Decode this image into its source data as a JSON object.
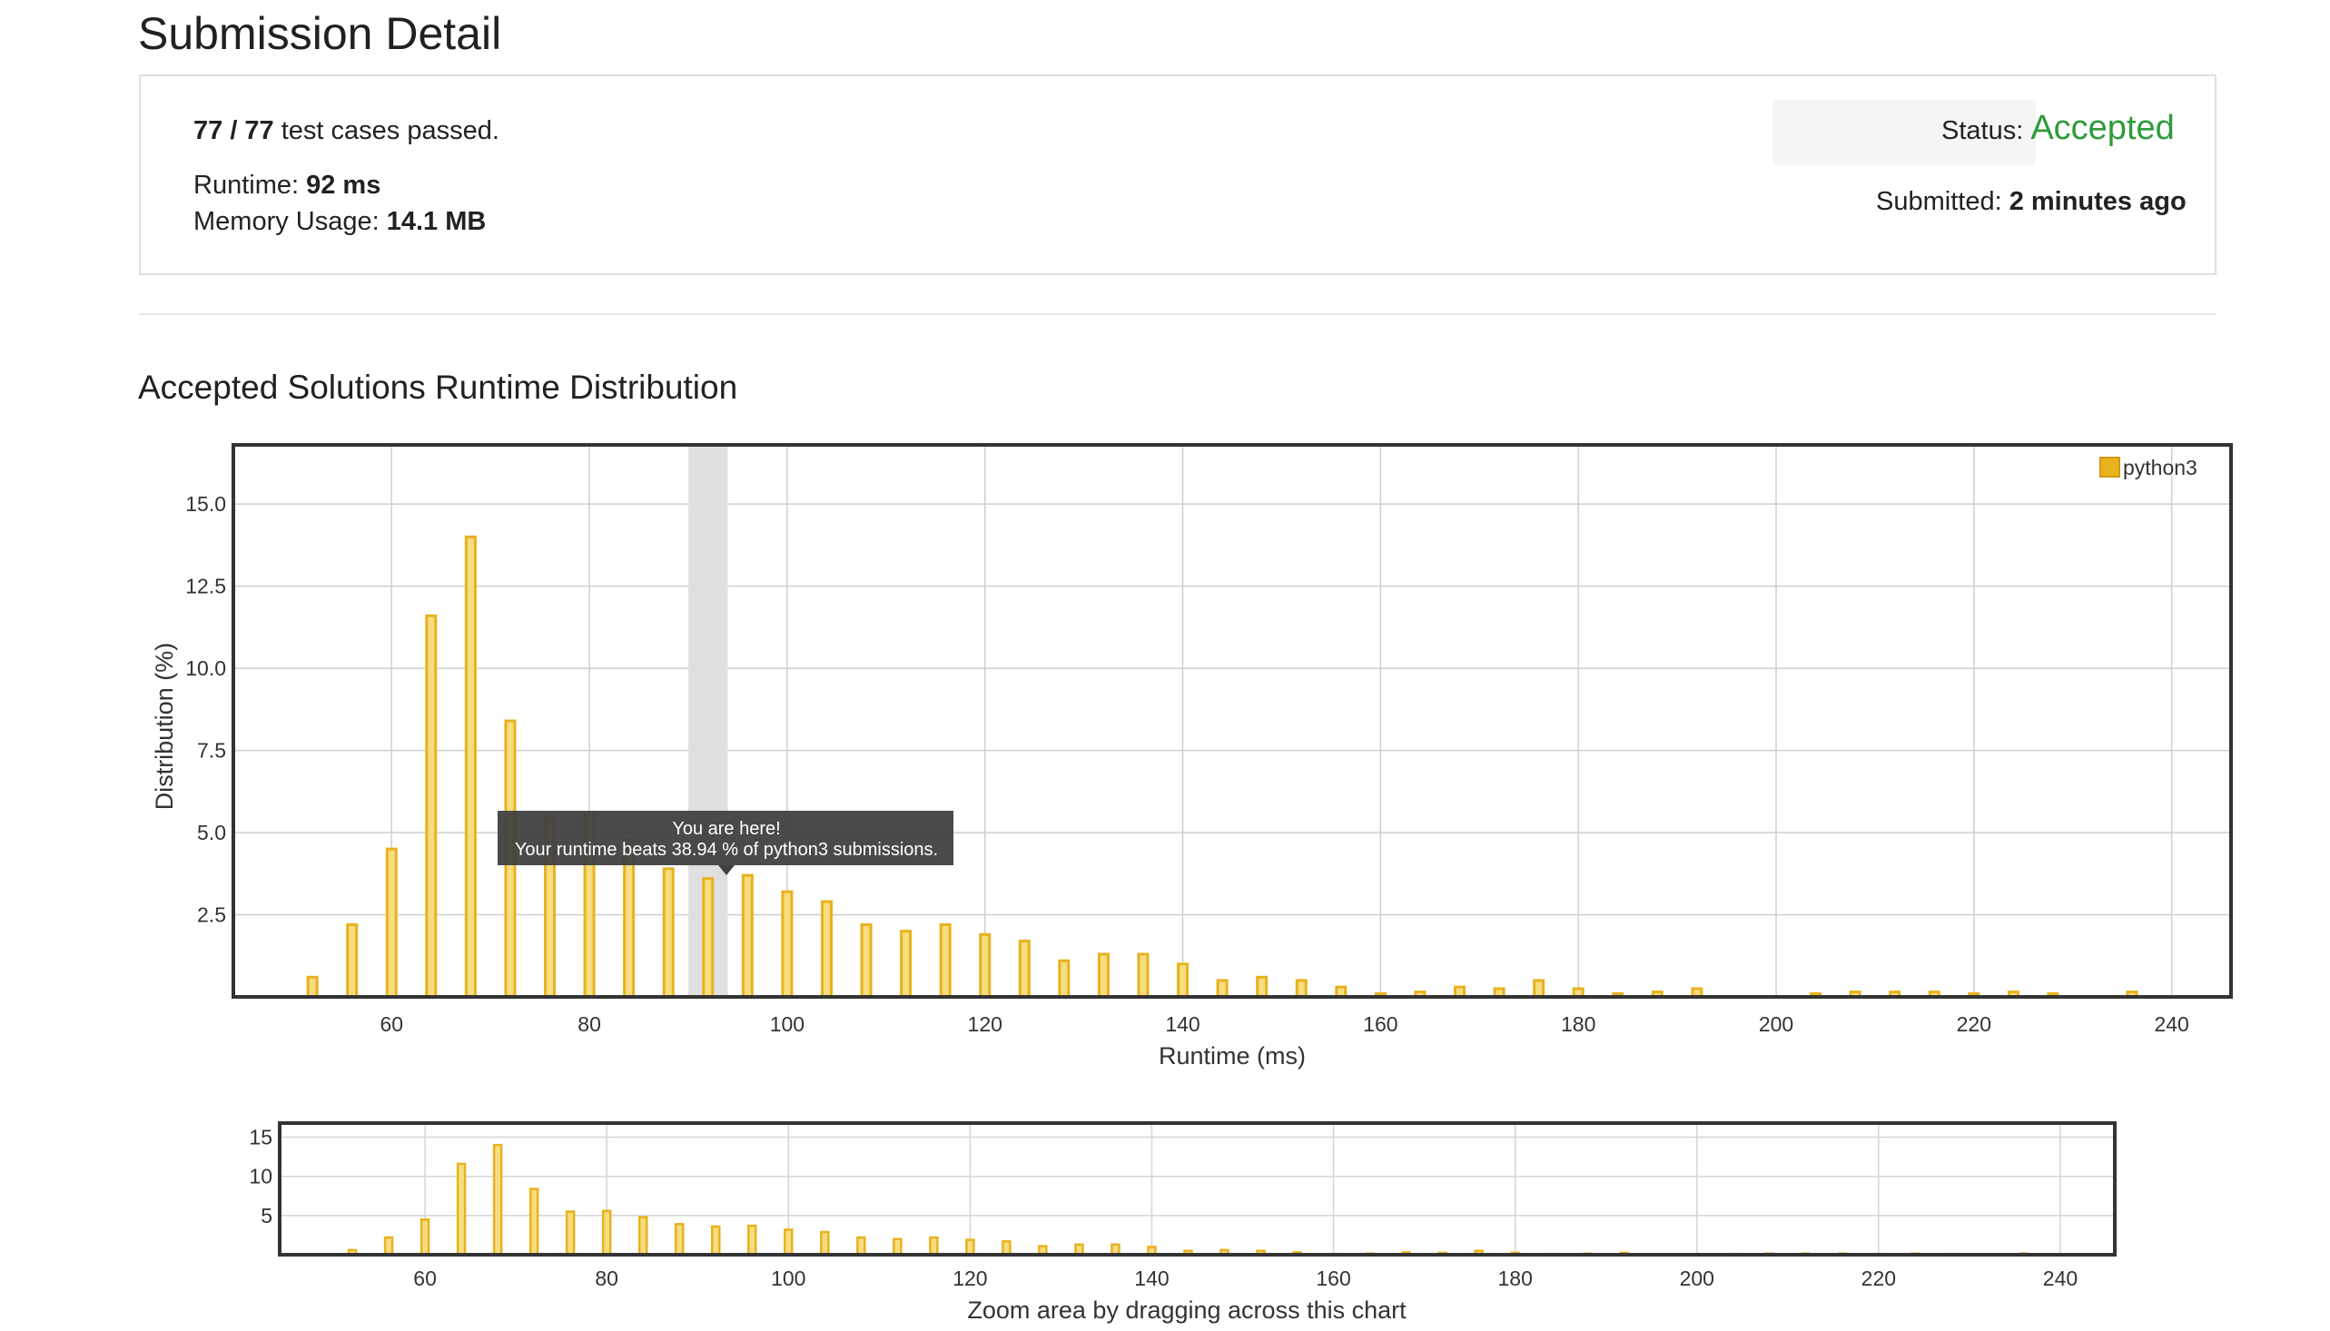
{
  "page": {
    "title": "Submission Detail"
  },
  "summary": {
    "tests_passed_bold": "77 / 77",
    "tests_passed_text": " test cases passed.",
    "runtime_label": "Runtime: ",
    "runtime_value": "92 ms",
    "memory_label": "Memory Usage: ",
    "memory_value": "14.1 MB",
    "status_label": "Status: ",
    "status_value": "Accepted",
    "submitted_label": "Submitted: ",
    "submitted_value": "2 minutes ago"
  },
  "chart_section": {
    "title": "Accepted Solutions Runtime Distribution",
    "zoom_hint": "Zoom area by dragging across this chart"
  },
  "colors": {
    "bar_fill": "#f6dd80",
    "bar_stroke": "#e8b21f",
    "status_accent": "#2e9b3b",
    "tooltip_bg": "#404040",
    "highlight_band": "#e0e0e0"
  },
  "chart_data": {
    "type": "bar",
    "title": "",
    "xlabel": "Runtime (ms)",
    "ylabel": "Distribution (%)",
    "xlim": [
      44,
      246
    ],
    "ylim": [
      0,
      16.8
    ],
    "x_ticks": [
      60,
      80,
      100,
      120,
      140,
      160,
      180,
      200,
      220,
      240
    ],
    "y_ticks": [
      2.5,
      5.0,
      7.5,
      10.0,
      12.5,
      15.0
    ],
    "grid": true,
    "legend_position": "top-right",
    "series": [
      {
        "name": "python3",
        "x": [
          52,
          56,
          60,
          64,
          68,
          72,
          76,
          80,
          84,
          88,
          92,
          96,
          100,
          104,
          108,
          112,
          116,
          120,
          124,
          128,
          132,
          136,
          140,
          144,
          148,
          152,
          156,
          160,
          164,
          168,
          172,
          176,
          180,
          184,
          188,
          192,
          204,
          208,
          212,
          216,
          220,
          224,
          228,
          236
        ],
        "values": [
          0.6,
          2.2,
          4.5,
          11.6,
          14.0,
          8.4,
          5.5,
          5.6,
          4.8,
          3.9,
          3.6,
          3.7,
          3.2,
          2.9,
          2.2,
          2.0,
          2.2,
          1.9,
          1.7,
          1.1,
          1.3,
          1.3,
          1.0,
          0.5,
          0.6,
          0.5,
          0.3,
          0.1,
          0.15,
          0.3,
          0.25,
          0.5,
          0.25,
          0.1,
          0.15,
          0.25,
          0.1,
          0.15,
          0.15,
          0.15,
          0.1,
          0.15,
          0.1,
          0.15
        ]
      }
    ],
    "highlight": {
      "x_start": 90,
      "x_end": 94
    },
    "tooltip": {
      "title": "You are here!",
      "text": "Your runtime beats 38.94 % of python3 submissions."
    },
    "navigator": {
      "y_ticks": [
        5,
        10,
        15
      ],
      "x_ticks": [
        60,
        80,
        100,
        120,
        140,
        160,
        180,
        200,
        220,
        240
      ]
    }
  }
}
